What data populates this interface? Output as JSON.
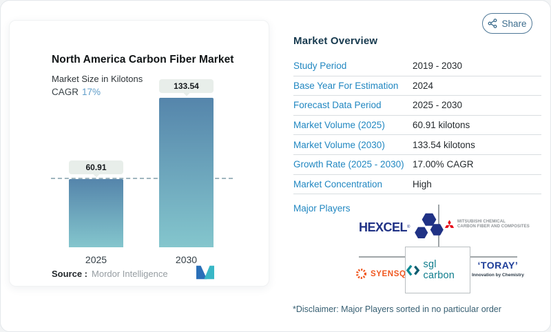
{
  "page": {
    "share_label": "Share"
  },
  "chart": {
    "title": "North America Carbon Fiber Market",
    "subtitle": "Market Size in Kilotons",
    "cagr_label": "CAGR",
    "cagr_value": "17%",
    "source_label": "Source :",
    "source_value": "Mordor Intelligence"
  },
  "chart_data": {
    "type": "bar",
    "title": "North America Carbon Fiber Market",
    "subtitle": "Market Size in Kilotons",
    "categories": [
      "2025",
      "2030"
    ],
    "values": [
      60.91,
      133.54
    ],
    "value_labels": [
      "60.91",
      "133.54"
    ],
    "cagr": "17%",
    "ylim": [
      0,
      143
    ],
    "grid": false,
    "legend": "none",
    "annotations": [
      "horizontal dashed reference line at 2025 value (60.91)"
    ]
  },
  "overview": {
    "heading": "Market Overview",
    "rows": [
      {
        "label": "Study Period",
        "value": "2019 - 2030"
      },
      {
        "label": "Base Year For Estimation",
        "value": "2024"
      },
      {
        "label": "Forecast Data Period",
        "value": "2025 - 2030"
      },
      {
        "label": "Market Volume (2025)",
        "value": "60.91 kilotons"
      },
      {
        "label": "Market Volume (2030)",
        "value": "133.54 kilotons"
      },
      {
        "label": "Growth Rate (2025 - 2030)",
        "value": "17.00% CAGR"
      },
      {
        "label": "Market Concentration",
        "value": "High"
      }
    ],
    "major_players_label": "Major Players",
    "disclaimer": "*Disclaimer: Major Players sorted in no particular order"
  },
  "logos": {
    "hexcel_text": "HEXCEL",
    "hexcel_reg": "®",
    "mitsubishi_line1": "MITSUBISHI CHEMICAL",
    "mitsubishi_line2": "CARBON FIBER AND COMPOSITES",
    "syensqo_text": "SYENSQO",
    "sgl_text": "sgl carbon",
    "toray_text": "‘TORAY’",
    "toray_sub": "Innovation by Chemistry"
  },
  "colors": {
    "label_blue": "#2187c1",
    "heading_navy": "#16394e",
    "value_dark": "#24292d",
    "divider": "#d8dde0",
    "bar_top": "#5585ab",
    "bar_bottom": "#84c6cd",
    "pill_bg": "#e8eeea",
    "dash_line": "#9fb5be",
    "share_teal": "#3e6e8e",
    "cagr_blue": "#5f9dc9",
    "source_gray": "#969da2",
    "disclaimer_teal": "#375f72",
    "hexcel_navy": "#203285",
    "mitsubishi_red": "#e60012",
    "logo_gray_text": "#8d9296",
    "syensqo_orange": "#f0571f",
    "sgl_teal": "#0e7c8c",
    "sgl_chevron_left": "#0d8a93",
    "sgl_chevron_right": "#0f5d70",
    "toray_navy": "#1e3e99",
    "mi_logo_blue": "#2a6fb8",
    "mi_logo_teal": "#39b7c6",
    "grid_line": "#9fa5a8"
  }
}
